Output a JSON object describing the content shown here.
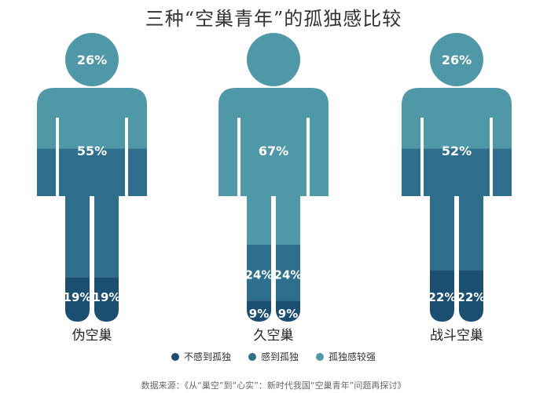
{
  "chart_data": {
    "type": "bar",
    "title": "三种“空巢青年”的孤独感比较",
    "source": "数据来源：《从“巢空”到“心实”：新时代我国“空巢青年”问题再探讨》",
    "colors": {
      "none": "#1b4f72",
      "some": "#2e6f8e",
      "strong": "#4f98a8"
    },
    "categories": [
      "伪空巢",
      "久空巢",
      "战斗空巢"
    ],
    "series": [
      {
        "name": "不感到孤独",
        "key": "none",
        "values": [
          19,
          9,
          22
        ]
      },
      {
        "name": "感到孤独",
        "key": "some",
        "values": [
          55,
          24,
          52
        ]
      },
      {
        "name": "孤独感较强",
        "key": "strong",
        "values": [
          26,
          67,
          26
        ]
      }
    ],
    "labels": [
      {
        "head": "26%",
        "body": "55%",
        "legs": "19%",
        "legs2": ""
      },
      {
        "head": "",
        "body": "67%",
        "legs": "24%",
        "legs2": "9%"
      },
      {
        "head": "26%",
        "body": "52%",
        "legs": "22%",
        "legs2": ""
      }
    ]
  }
}
